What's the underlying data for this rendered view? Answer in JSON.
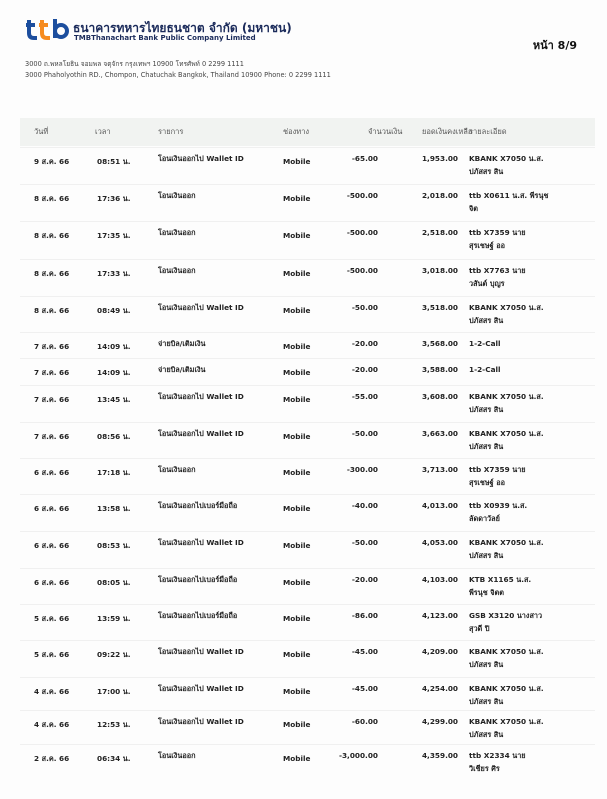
{
  "header": {
    "bank_name_th": "ธนาคารทหารไทยธนชาต จำกัด (มหาชน)",
    "bank_name_en": "TMBThanachart Bank Public Company Limited",
    "page": "หน้า 8/9",
    "address_th": "3000 ถ.พหลโยธิน จอมพล จตุจักร กรุงเทพฯ 10900 โทรศัพท์ 0 2299 1111",
    "address_en": "3000 Phaholyothin RD., Chompon, Chatuchak Bangkok, Thailand 10900 Phone: 0 2299 1111",
    "logo_text": "ttb",
    "logo_colors": [
      "#1c4e9e",
      "#f68b1f"
    ]
  },
  "table": {
    "columns": [
      "วันที่",
      "เวลา",
      "รายการ",
      "ช่องทาง",
      "จำนวนเงิน",
      "ยอดเงินคงเหลือ",
      "รายละเอียด"
    ],
    "rows": [
      {
        "date": "9 ส.ค. 66",
        "time": "08:51 น.",
        "desc": "โอนเงินออกไป Wallet ID",
        "channel": "Mobile",
        "amount": "-65.00",
        "balance": "1,953.00",
        "detail1": "KBANK X7050 น.ส.",
        "detail2": "ปภัสสร สิน"
      },
      {
        "date": "8 ส.ค. 66",
        "time": "17:36 น.",
        "desc": "โอนเงินออก",
        "channel": "Mobile",
        "amount": "-500.00",
        "balance": "2,018.00",
        "detail1": "ttb X0611 น.ส. พีรนุช",
        "detail2": "จิต"
      },
      {
        "date": "8 ส.ค. 66",
        "time": "17:35 น.",
        "desc": "โอนเงินออก",
        "channel": "Mobile",
        "amount": "-500.00",
        "balance": "2,518.00",
        "detail1": "ttb X7359 นาย",
        "detail2": "สุรเชษฐ์ ออ"
      },
      {
        "date": "8 ส.ค. 66",
        "time": "17:33 น.",
        "desc": "โอนเงินออก",
        "channel": "Mobile",
        "amount": "-500.00",
        "balance": "3,018.00",
        "detail1": "ttb X7763 นาย",
        "detail2": "วสันต์ บุญร"
      },
      {
        "date": "8 ส.ค. 66",
        "time": "08:49 น.",
        "desc": "โอนเงินออกไป Wallet ID",
        "channel": "Mobile",
        "amount": "-50.00",
        "balance": "3,518.00",
        "detail1": "KBANK X7050 น.ส.",
        "detail2": "ปภัสสร สิน"
      },
      {
        "date": "7 ส.ค. 66",
        "time": "14:09 น.",
        "desc": "จ่ายบิล/เติมเงิน",
        "channel": "Mobile",
        "amount": "-20.00",
        "balance": "3,568.00",
        "detail1": "1-2-Call",
        "detail2": ""
      },
      {
        "date": "7 ส.ค. 66",
        "time": "14:09 น.",
        "desc": "จ่ายบิล/เติมเงิน",
        "channel": "Mobile",
        "amount": "-20.00",
        "balance": "3,588.00",
        "detail1": "1-2-Call",
        "detail2": ""
      },
      {
        "date": "7 ส.ค. 66",
        "time": "13:45 น.",
        "desc": "โอนเงินออกไป Wallet ID",
        "channel": "Mobile",
        "amount": "-55.00",
        "balance": "3,608.00",
        "detail1": "KBANK X7050 น.ส.",
        "detail2": "ปภัสสร สิน"
      },
      {
        "date": "7 ส.ค. 66",
        "time": "08:56 น.",
        "desc": "โอนเงินออกไป Wallet ID",
        "channel": "Mobile",
        "amount": "-50.00",
        "balance": "3,663.00",
        "detail1": "KBANK X7050 น.ส.",
        "detail2": "ปภัสสร สิน"
      },
      {
        "date": "6 ส.ค. 66",
        "time": "17:18 น.",
        "desc": "โอนเงินออก",
        "channel": "Mobile",
        "amount": "-300.00",
        "balance": "3,713.00",
        "detail1": "ttb X7359 นาย",
        "detail2": "สุรเชษฐ์ ออ"
      },
      {
        "date": "6 ส.ค. 66",
        "time": "13:58 น.",
        "desc": "โอนเงินออกไปเบอร์มือถือ",
        "channel": "Mobile",
        "amount": "-40.00",
        "balance": "4,013.00",
        "detail1": "ttb X0939 น.ส.",
        "detail2": "ลัดดาวัลย์"
      },
      {
        "date": "6 ส.ค. 66",
        "time": "08:53 น.",
        "desc": "โอนเงินออกไป Wallet ID",
        "channel": "Mobile",
        "amount": "-50.00",
        "balance": "4,053.00",
        "detail1": "KBANK X7050 น.ส.",
        "detail2": "ปภัสสร สิน"
      },
      {
        "date": "6 ส.ค. 66",
        "time": "08:05 น.",
        "desc": "โอนเงินออกไปเบอร์มือถือ",
        "channel": "Mobile",
        "amount": "-20.00",
        "balance": "4,103.00",
        "detail1": "KTB X1165 น.ส.",
        "detail2": "พีรนุช จิตต"
      },
      {
        "date": "5 ส.ค. 66",
        "time": "13:59 น.",
        "desc": "โอนเงินออกไปเบอร์มือถือ",
        "channel": "Mobile",
        "amount": "-86.00",
        "balance": "4,123.00",
        "detail1": "GSB X3120 นางสาว",
        "detail2": "สุวดี ปิ"
      },
      {
        "date": "5 ส.ค. 66",
        "time": "09:22 น.",
        "desc": "โอนเงินออกไป Wallet ID",
        "channel": "Mobile",
        "amount": "-45.00",
        "balance": "4,209.00",
        "detail1": "KBANK X7050 น.ส.",
        "detail2": "ปภัสสร สิน"
      },
      {
        "date": "4 ส.ค. 66",
        "time": "17:00 น.",
        "desc": "โอนเงินออกไป Wallet ID",
        "channel": "Mobile",
        "amount": "-45.00",
        "balance": "4,254.00",
        "detail1": "KBANK X7050 น.ส.",
        "detail2": "ปภัสสร สิน"
      },
      {
        "date": "4 ส.ค. 66",
        "time": "12:53 น.",
        "desc": "โอนเงินออกไป Wallet ID",
        "channel": "Mobile",
        "amount": "-60.00",
        "balance": "4,299.00",
        "detail1": "KBANK X7050 น.ส.",
        "detail2": "ปภัสสร สิน"
      },
      {
        "date": "2 ส.ค. 66",
        "time": "06:34 น.",
        "desc": "โอนเงินออก",
        "channel": "Mobile",
        "amount": "-3,000.00",
        "balance": "4,359.00",
        "detail1": "ttb X2334 นาย",
        "detail2": "วิเชียร ศิร"
      }
    ]
  }
}
